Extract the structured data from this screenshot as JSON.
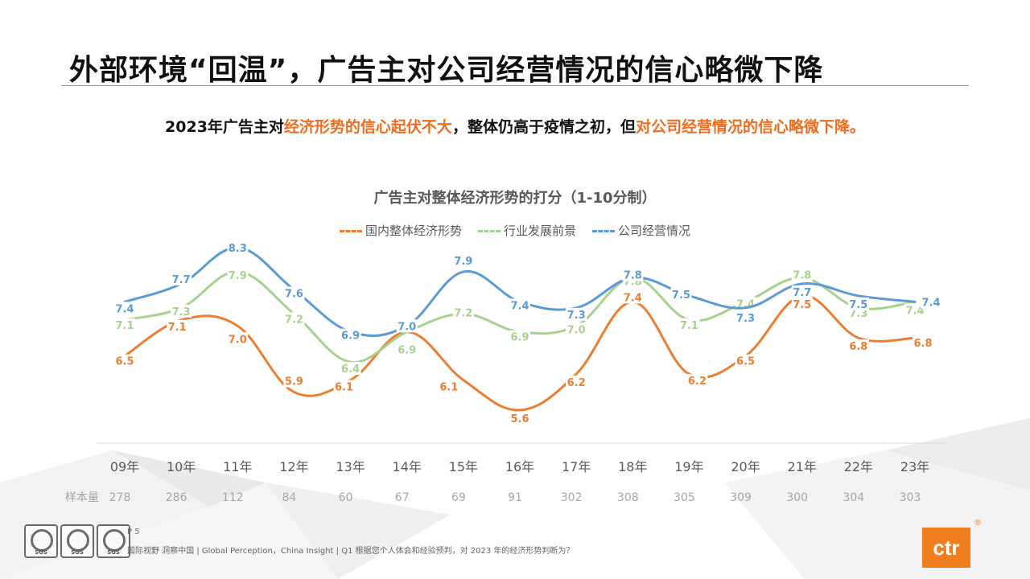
{
  "page": {
    "title": "外部环境“回温”，广告主对公司经营情况的信心略微下降",
    "subtitle_parts": [
      {
        "text": "2023年广告主对",
        "hl": false
      },
      {
        "text": "经济形势的信心起伏不大",
        "hl": true
      },
      {
        "text": "，整体仍高于疫情之初，但",
        "hl": false
      },
      {
        "text": "对公司经营情况的信心略微下降。",
        "hl": true
      }
    ],
    "page_number": "P 5",
    "footer_note": "国际视野  洞察中国 | Global Perception，China Insight  | Q1 根据您个人体会和经验预判，对 2023 年的经济形势判断为？",
    "sgs_badges": [
      "SGS",
      "SGS",
      "SGS"
    ],
    "logo_text": "ctr",
    "logo_mark": "®",
    "sample_label": "样本量",
    "colors": {
      "accent": "#ef6c1f",
      "line_domestic": "#ed7d31",
      "line_industry": "#a9d18e",
      "line_company": "#5b9bd5"
    }
  },
  "chart_data": {
    "type": "line",
    "title": "广告主对整体经济形势的打分（1-10分制）",
    "categories": [
      "09年",
      "10年",
      "11年",
      "12年",
      "13年",
      "14年",
      "15年",
      "16年",
      "17年",
      "18年",
      "19年",
      "20年",
      "21年",
      "22年",
      "23年"
    ],
    "sample_sizes": [
      "278",
      "286",
      "112",
      "84",
      "60",
      "67",
      "69",
      "91",
      "302",
      "308",
      "305",
      "309",
      "300",
      "304",
      "303"
    ],
    "legend_position": "top-center",
    "grid": false,
    "series": [
      {
        "name": "国内整体经济形势",
        "color": "#ed7d31",
        "values": [
          6.5,
          7.1,
          7.0,
          5.9,
          6.1,
          6.9,
          6.1,
          5.6,
          6.2,
          7.4,
          6.2,
          6.5,
          7.5,
          6.8,
          6.8
        ]
      },
      {
        "name": "行业发展前景",
        "color": "#a9d18e",
        "values": [
          7.1,
          7.3,
          7.9,
          7.2,
          6.4,
          6.9,
          7.2,
          6.9,
          7.0,
          7.8,
          7.1,
          7.4,
          7.8,
          7.3,
          7.4
        ]
      },
      {
        "name": "公司经营情况",
        "color": "#5b9bd5",
        "values": [
          7.4,
          7.7,
          8.3,
          7.6,
          6.9,
          7.0,
          7.9,
          7.4,
          7.3,
          7.8,
          7.5,
          7.3,
          7.7,
          7.5,
          7.4
        ]
      }
    ]
  }
}
